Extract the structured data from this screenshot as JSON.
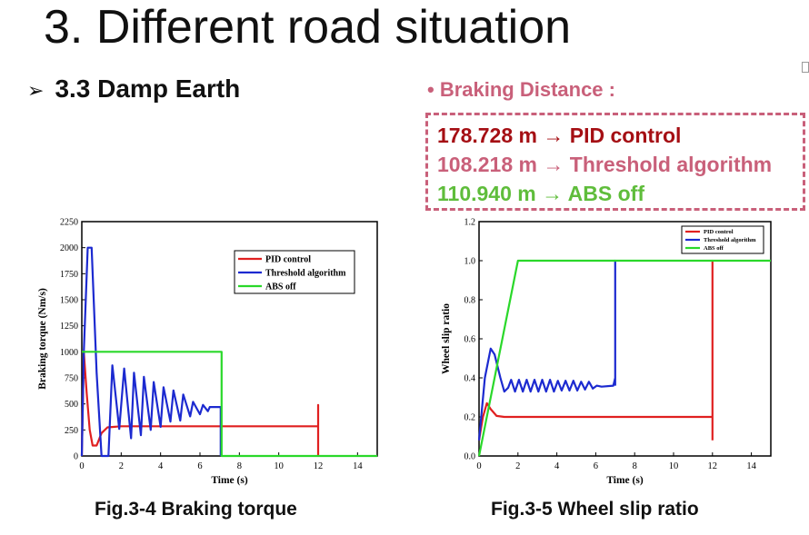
{
  "slide": {
    "title": "3. Different road situation",
    "subheading": "3.3 Damp Earth",
    "braking_title": "• Braking Distance :",
    "braking_lines": [
      {
        "value": "178.728 m",
        "arrow": "→",
        "label": "PID control",
        "color": "#a50f14"
      },
      {
        "value": "108.218 m",
        "arrow": "→",
        "label": "Threshold algorithm",
        "color": "#c9607a"
      },
      {
        "value": "110.940 m",
        "arrow": "→",
        "label": "ABS off",
        "color": "#5fbd3b"
      }
    ],
    "captions": [
      "Fig.3-4 Braking torque",
      "Fig.3-5 Wheel slip ratio"
    ]
  },
  "chart_data": [
    {
      "type": "line",
      "title": "",
      "xlabel": "Time (s)",
      "ylabel": "Braking torque (Nm/s)",
      "xlim": [
        0,
        15
      ],
      "ylim": [
        0,
        2250
      ],
      "xticks": [
        0,
        2,
        4,
        6,
        8,
        10,
        12,
        14
      ],
      "yticks": [
        0,
        250,
        500,
        750,
        1000,
        1250,
        1500,
        1750,
        2000,
        2250
      ],
      "legend_position": "top-right",
      "series": [
        {
          "name": "PID control",
          "color": "#e02020",
          "points": [
            [
              0,
              0
            ],
            [
              0.1,
              1000
            ],
            [
              0.25,
              600
            ],
            [
              0.4,
              250
            ],
            [
              0.55,
              100
            ],
            [
              0.75,
              100
            ],
            [
              1,
              220
            ],
            [
              1.3,
              275
            ],
            [
              2,
              285
            ],
            [
              12,
              285
            ],
            [
              12,
              490
            ],
            [
              12,
              0
            ]
          ]
        },
        {
          "name": "Threshold algorithm",
          "color": "#1c2ad0",
          "points": [
            [
              0,
              0
            ],
            [
              0.1,
              1000
            ],
            [
              0.3,
              2000
            ],
            [
              0.5,
              2000
            ],
            [
              0.75,
              800
            ],
            [
              1,
              0
            ],
            [
              1.35,
              0
            ],
            [
              1.55,
              870
            ],
            [
              1.9,
              260
            ],
            [
              2.15,
              840
            ],
            [
              2.5,
              170
            ],
            [
              2.65,
              800
            ],
            [
              3,
              200
            ],
            [
              3.15,
              760
            ],
            [
              3.5,
              250
            ],
            [
              3.65,
              710
            ],
            [
              4,
              280
            ],
            [
              4.15,
              660
            ],
            [
              4.5,
              330
            ],
            [
              4.65,
              630
            ],
            [
              5,
              340
            ],
            [
              5.15,
              590
            ],
            [
              5.5,
              380
            ],
            [
              5.65,
              520
            ],
            [
              6,
              400
            ],
            [
              6.15,
              490
            ],
            [
              6.4,
              430
            ],
            [
              6.5,
              470
            ],
            [
              7,
              470
            ],
            [
              7.05,
              470
            ],
            [
              7.05,
              0
            ]
          ]
        },
        {
          "name": "ABS off",
          "color": "#2ad82a",
          "points": [
            [
              0,
              1000
            ],
            [
              7.1,
              1000
            ],
            [
              7.1,
              0
            ],
            [
              15,
              0
            ]
          ]
        }
      ]
    },
    {
      "type": "line",
      "title": "",
      "xlabel": "Time (s)",
      "ylabel": "Wheel slip ratio",
      "xlim": [
        0,
        15
      ],
      "ylim": [
        0,
        1.2
      ],
      "xticks": [
        0,
        2,
        4,
        6,
        8,
        10,
        12,
        14
      ],
      "yticks": [
        0.0,
        0.2,
        0.4,
        0.6,
        0.8,
        1.0,
        1.2
      ],
      "legend_position": "top-right",
      "series": [
        {
          "name": "PID control",
          "color": "#e02020",
          "points": [
            [
              0,
              0.08
            ],
            [
              0.2,
              0.2
            ],
            [
              0.4,
              0.27
            ],
            [
              0.6,
              0.24
            ],
            [
              0.9,
              0.205
            ],
            [
              1.3,
              0.2
            ],
            [
              2,
              0.2
            ],
            [
              12,
              0.2
            ],
            [
              12,
              1.0
            ],
            [
              12,
              0.08
            ]
          ]
        },
        {
          "name": "Threshold algorithm",
          "color": "#1c2ad0",
          "points": [
            [
              0,
              0.08
            ],
            [
              0.3,
              0.4
            ],
            [
              0.6,
              0.55
            ],
            [
              0.8,
              0.52
            ],
            [
              1.1,
              0.4
            ],
            [
              1.3,
              0.33
            ],
            [
              1.5,
              0.35
            ],
            [
              1.65,
              0.39
            ],
            [
              1.85,
              0.33
            ],
            [
              2.05,
              0.39
            ],
            [
              2.25,
              0.33
            ],
            [
              2.45,
              0.39
            ],
            [
              2.65,
              0.33
            ],
            [
              2.85,
              0.39
            ],
            [
              3.05,
              0.33
            ],
            [
              3.25,
              0.39
            ],
            [
              3.45,
              0.33
            ],
            [
              3.65,
              0.39
            ],
            [
              3.85,
              0.33
            ],
            [
              4.05,
              0.385
            ],
            [
              4.25,
              0.335
            ],
            [
              4.45,
              0.385
            ],
            [
              4.65,
              0.335
            ],
            [
              4.85,
              0.385
            ],
            [
              5.05,
              0.335
            ],
            [
              5.25,
              0.38
            ],
            [
              5.45,
              0.34
            ],
            [
              5.65,
              0.38
            ],
            [
              5.85,
              0.345
            ],
            [
              6.05,
              0.36
            ],
            [
              6.3,
              0.355
            ],
            [
              6.9,
              0.36
            ],
            [
              7,
              0.4
            ],
            [
              7,
              1.0
            ],
            [
              7,
              0.36
            ]
          ]
        },
        {
          "name": "ABS off",
          "color": "#2ad82a",
          "points": [
            [
              0,
              0
            ],
            [
              2,
              1.0
            ],
            [
              15,
              1.0
            ]
          ]
        }
      ]
    }
  ]
}
